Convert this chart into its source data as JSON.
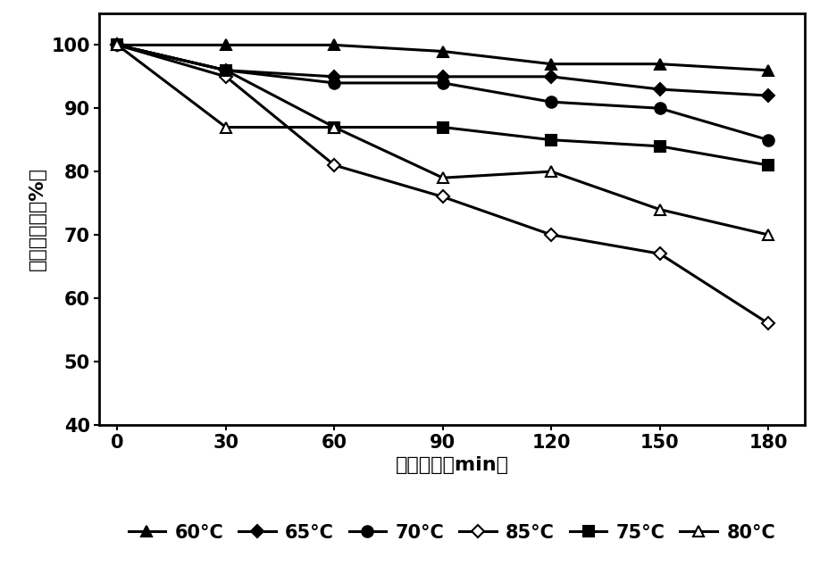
{
  "x": [
    0,
    30,
    60,
    90,
    120,
    150,
    180
  ],
  "series": [
    {
      "label": "60°C",
      "values": [
        100,
        100,
        100,
        99,
        97,
        97,
        96
      ],
      "marker": "^",
      "markersize": 9,
      "fillstyle": "full"
    },
    {
      "label": "65°C",
      "values": [
        100,
        96,
        95,
        95,
        95,
        93,
        92
      ],
      "marker": "D",
      "markersize": 7,
      "fillstyle": "full"
    },
    {
      "label": "70°C",
      "values": [
        100,
        96,
        94,
        94,
        91,
        90,
        85
      ],
      "marker": "o",
      "markersize": 9,
      "fillstyle": "full"
    },
    {
      "label": "85°C",
      "values": [
        100,
        95,
        81,
        76,
        70,
        67,
        56
      ],
      "marker": "D",
      "markersize": 7,
      "fillstyle": "none"
    },
    {
      "label": "75°C",
      "values": [
        100,
        96,
        87,
        87,
        85,
        84,
        81
      ],
      "marker": "s",
      "markersize": 9,
      "fillstyle": "full"
    },
    {
      "label": "80°C",
      "values": [
        100,
        87,
        87,
        79,
        80,
        74,
        70
      ],
      "marker": "^",
      "markersize": 9,
      "fillstyle": "none"
    }
  ],
  "xlabel": "处理时间（min）",
  "ylabel": "酶活保存率（%）",
  "xlim": [
    -5,
    190
  ],
  "ylim": [
    40,
    105
  ],
  "xticks": [
    0,
    30,
    60,
    90,
    120,
    150,
    180
  ],
  "yticks": [
    40,
    50,
    60,
    70,
    80,
    90,
    100
  ],
  "axis_label_fontsize": 16,
  "tick_fontsize": 15,
  "legend_fontsize": 15,
  "linewidth": 2.2
}
